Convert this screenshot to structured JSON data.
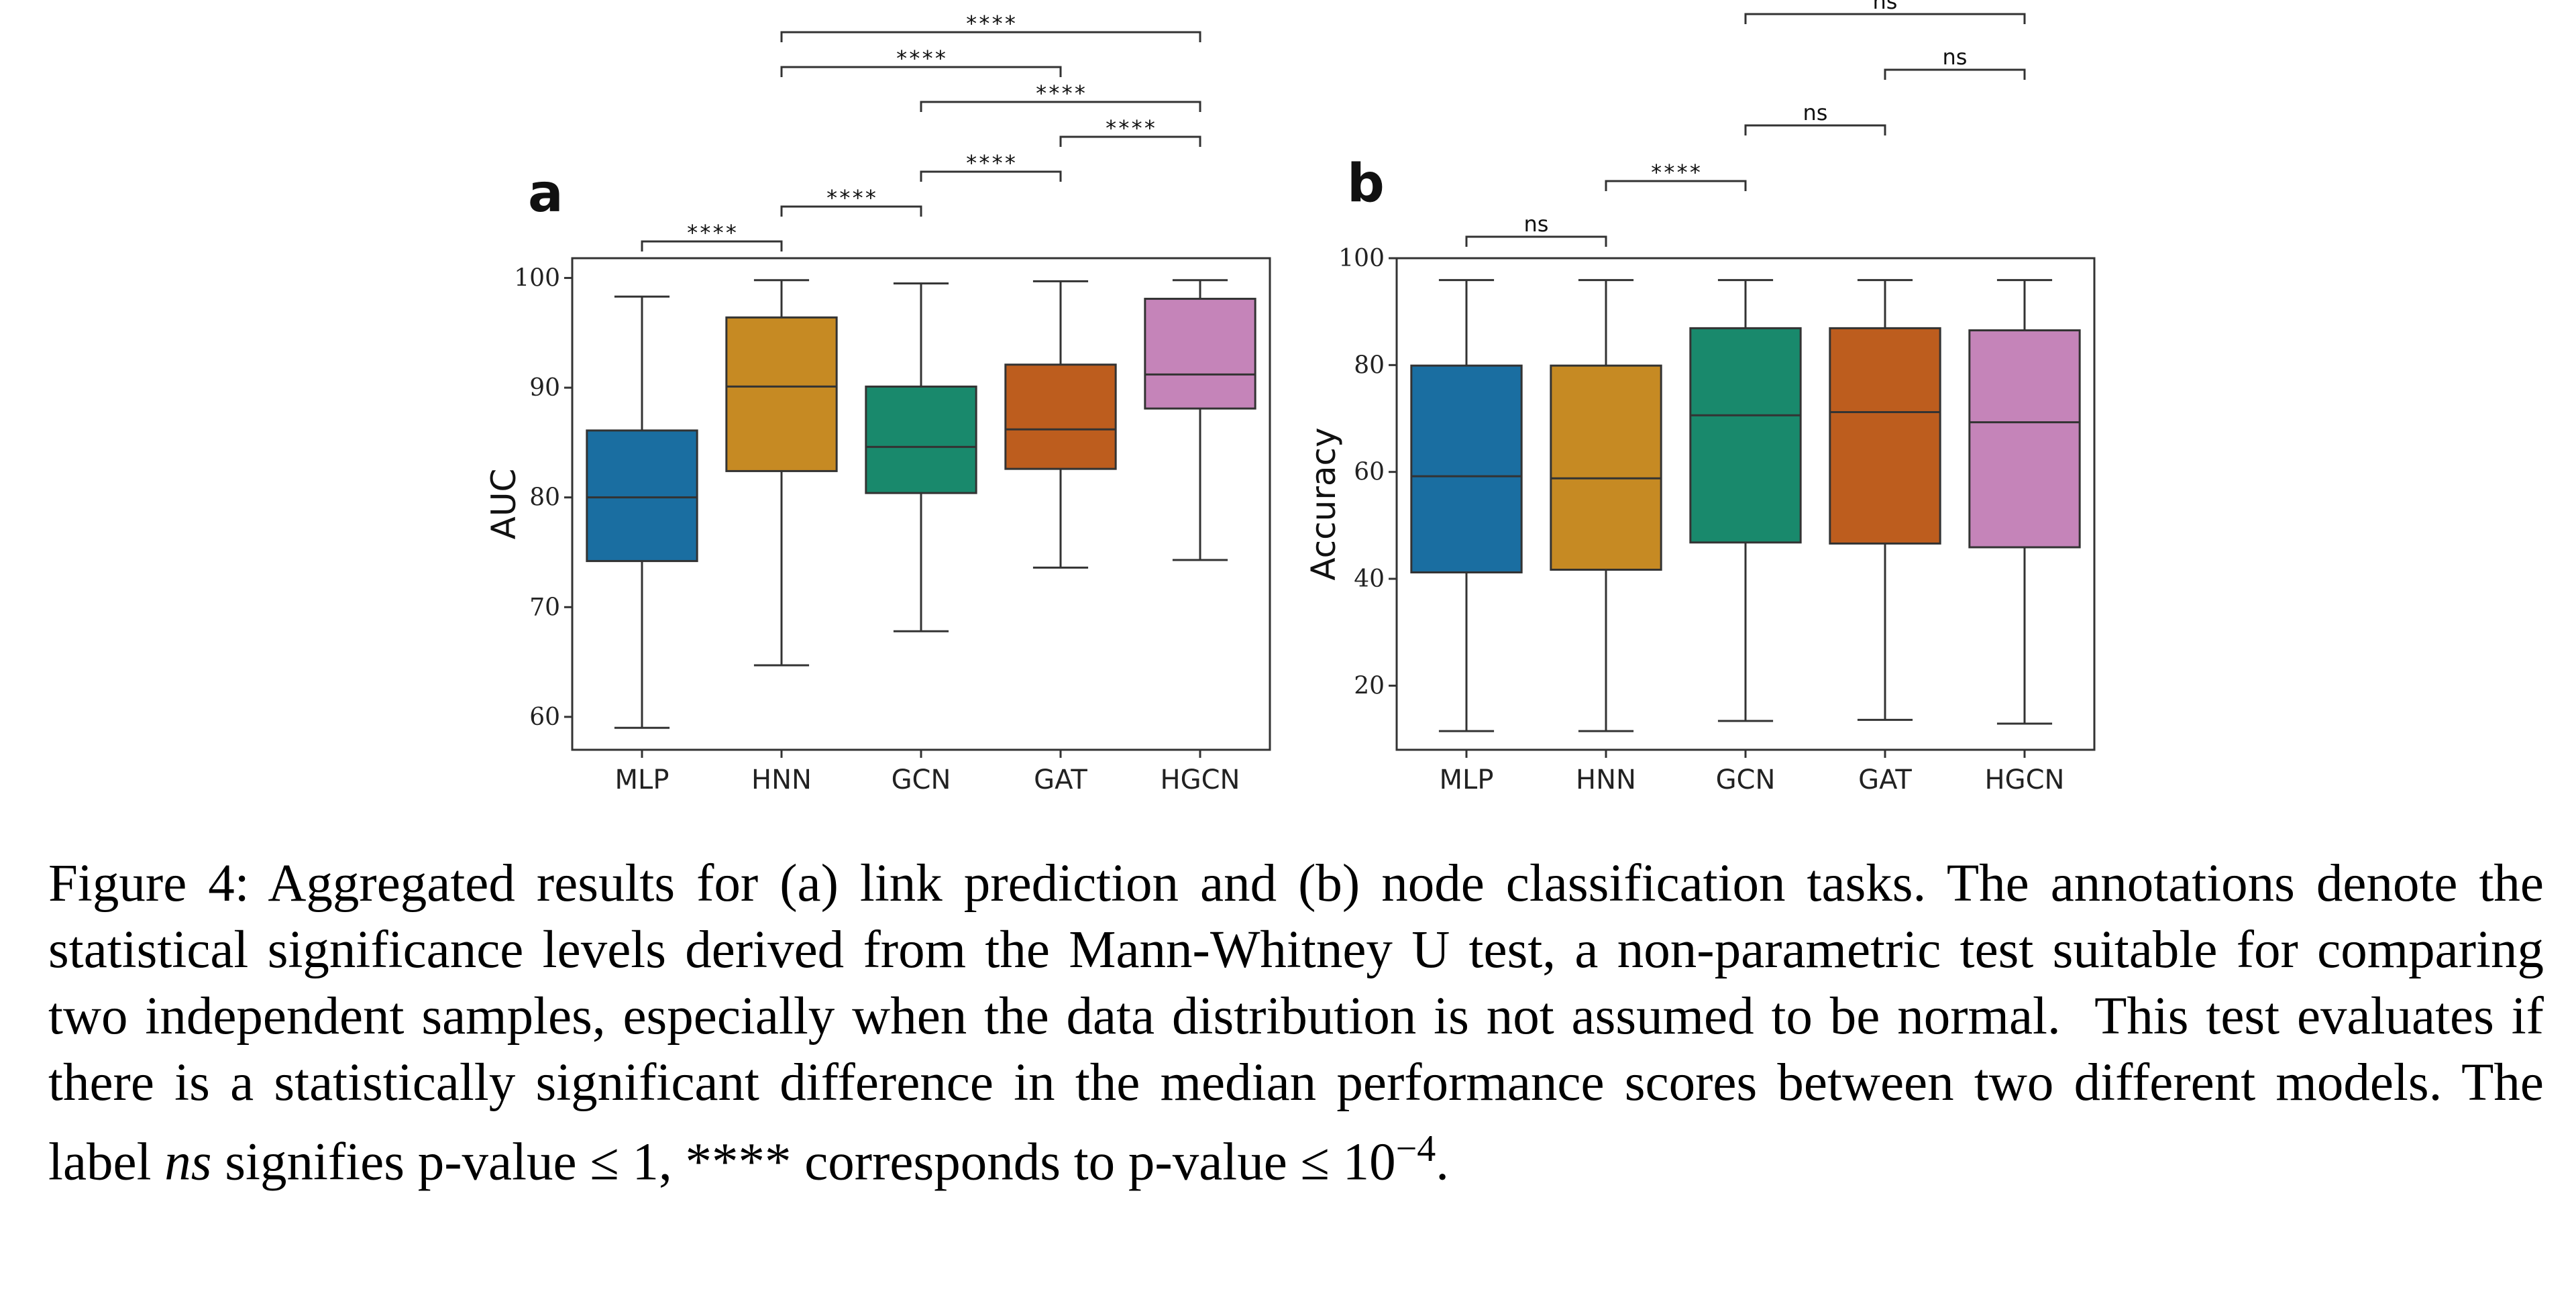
{
  "chart_data": [
    {
      "type": "box",
      "panel_label": "a",
      "categories": [
        "MLP",
        "HNN",
        "GCN",
        "GAT",
        "HGCN"
      ],
      "ylabel": "AUC",
      "xlabel": "",
      "ylim": [
        57,
        101.8
      ],
      "yticks": [
        60,
        70,
        80,
        90,
        100
      ],
      "grid": false,
      "boxes": [
        {
          "min": 59,
          "q1": 74.2,
          "median": 80,
          "q3": 86.1,
          "max": 98.3
        },
        {
          "min": 64.7,
          "q1": 82.4,
          "median": 90.1,
          "q3": 96.4,
          "max": 99.8
        },
        {
          "min": 67.8,
          "q1": 80.4,
          "median": 84.6,
          "q3": 90.1,
          "max": 99.5
        },
        {
          "min": 73.6,
          "q1": 82.6,
          "median": 86.2,
          "q3": 92.1,
          "max": 99.7
        },
        {
          "min": 74.3,
          "q1": 88.1,
          "median": 91.2,
          "q3": 98.1,
          "max": 99.8
        }
      ],
      "significance": [
        {
          "from": 0,
          "to": 1,
          "label": "****",
          "level": 0
        },
        {
          "from": 1,
          "to": 2,
          "label": "****",
          "level": 1
        },
        {
          "from": 2,
          "to": 3,
          "label": "****",
          "level": 2
        },
        {
          "from": 3,
          "to": 4,
          "label": "****",
          "level": 3
        },
        {
          "from": 2,
          "to": 4,
          "label": "****",
          "level": 4
        },
        {
          "from": 1,
          "to": 3,
          "label": "****",
          "level": 5
        },
        {
          "from": 1,
          "to": 4,
          "label": "****",
          "level": 6
        }
      ]
    },
    {
      "type": "box",
      "panel_label": "b",
      "categories": [
        "MLP",
        "HNN",
        "GCN",
        "GAT",
        "HGCN"
      ],
      "ylabel": "Accuracy",
      "xlabel": "",
      "ylim": [
        8,
        100
      ],
      "yticks": [
        20,
        40,
        60,
        80,
        100
      ],
      "grid": false,
      "boxes": [
        {
          "min": 11.5,
          "q1": 41.2,
          "median": 59.2,
          "q3": 79.9,
          "max": 95.9
        },
        {
          "min": 11.5,
          "q1": 41.7,
          "median": 58.8,
          "q3": 79.9,
          "max": 95.9
        },
        {
          "min": 13.4,
          "q1": 46.8,
          "median": 70.6,
          "q3": 86.9,
          "max": 95.9
        },
        {
          "min": 13.6,
          "q1": 46.6,
          "median": 71.2,
          "q3": 86.9,
          "max": 95.9
        },
        {
          "min": 12.9,
          "q1": 45.9,
          "median": 69.3,
          "q3": 86.5,
          "max": 95.9
        }
      ],
      "significance": [
        {
          "from": 0,
          "to": 1,
          "label": "ns",
          "level": 0
        },
        {
          "from": 1,
          "to": 2,
          "label": "****",
          "level": 1
        },
        {
          "from": 2,
          "to": 3,
          "label": "ns",
          "level": 2
        },
        {
          "from": 3,
          "to": 4,
          "label": "ns",
          "level": 3
        },
        {
          "from": 2,
          "to": 4,
          "label": "ns",
          "level": 4
        }
      ]
    }
  ],
  "palette": [
    "#1a6ea1",
    "#c68a23",
    "#19896c",
    "#bd5d1e",
    "#c584b9"
  ],
  "caption": {
    "p1": "Figure 4: Aggregated results for (a) link prediction and (b) node classification tasks. The annotations denote the statistical significance levels derived from the Mann-Whitney U test, a non-parametric test suitable for comparing two independent samples, especially when the data distribution is not assumed to be normal.  This test evaluates if there is a statistically significant difference in the median performance scores between two different models. The label ",
    "ns": "ns",
    "p2": " signifies p-value ≤ 1, ",
    "stars": "****",
    "p3": " corresponds to p-value ≤ 10",
    "exp": "−4",
    "p4": "."
  }
}
